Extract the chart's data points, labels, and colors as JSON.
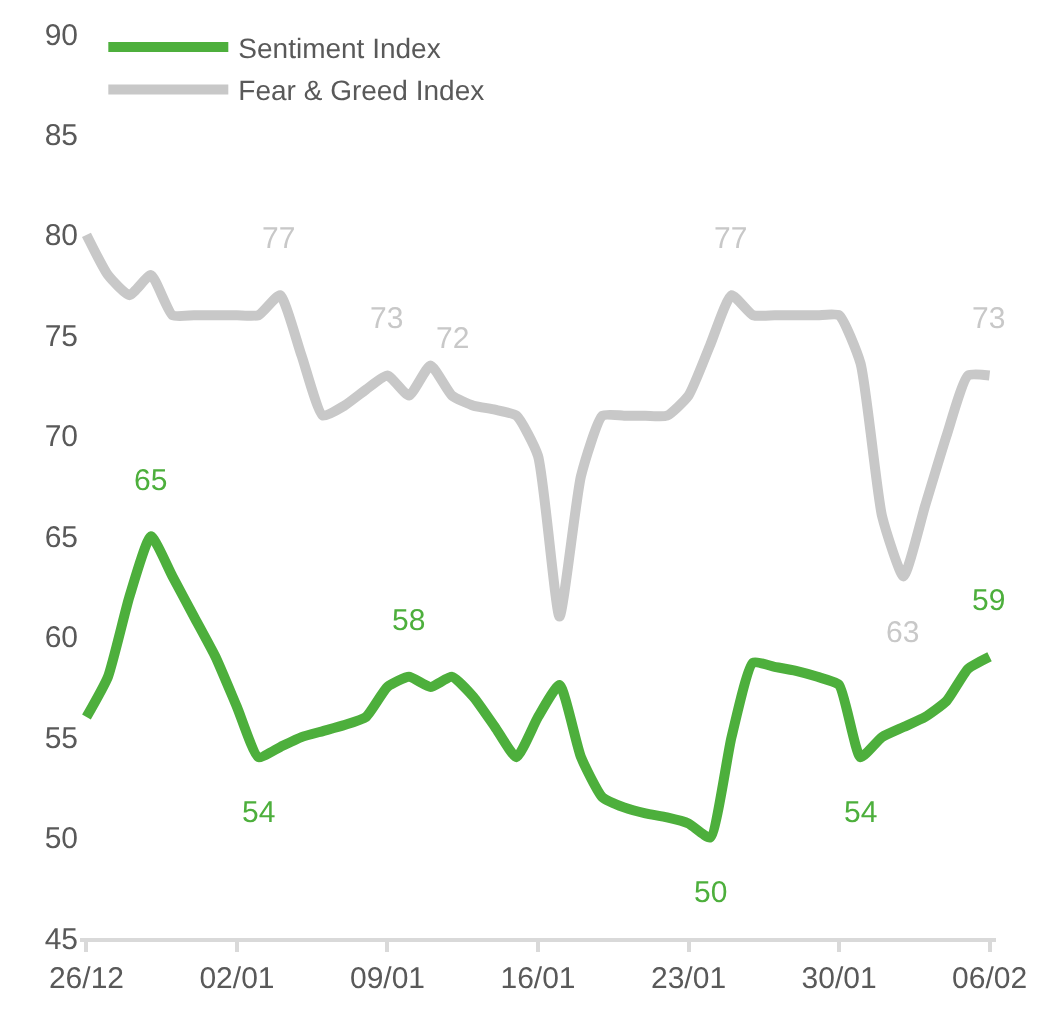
{
  "chart_data": {
    "type": "line",
    "ylim": [
      45,
      90
    ],
    "yticks": [
      45,
      50,
      55,
      60,
      65,
      70,
      75,
      80,
      85,
      90
    ],
    "categories": [
      "26/12",
      null,
      null,
      null,
      null,
      null,
      null,
      "02/01",
      null,
      null,
      null,
      null,
      null,
      null,
      "09/01",
      null,
      null,
      null,
      null,
      null,
      null,
      "16/01",
      null,
      null,
      null,
      null,
      null,
      null,
      "23/01",
      null,
      null,
      null,
      null,
      null,
      null,
      "30/01",
      null,
      null,
      null,
      null,
      null,
      null,
      "06/02"
    ],
    "grid": false,
    "legend": "top left",
    "marker": "none",
    "line_style": "solid",
    "series": [
      {
        "name": "Sentiment Index",
        "color": "#4daf3c",
        "values": [
          56,
          58,
          62,
          65,
          63,
          61,
          59,
          56.5,
          54,
          54.5,
          55,
          55.3,
          55.6,
          56,
          57.5,
          58,
          57.5,
          58,
          57,
          55.5,
          54,
          56,
          57.6,
          54,
          52,
          51.5,
          51.2,
          51,
          50.7,
          50,
          55,
          58.7,
          58.5,
          58.3,
          58,
          57.6,
          54,
          55,
          55.5,
          56,
          56.8,
          58.4,
          59
        ],
        "value_labels": [
          null,
          null,
          null,
          "65",
          null,
          null,
          null,
          null,
          "54",
          null,
          null,
          null,
          null,
          null,
          null,
          "58",
          null,
          null,
          null,
          null,
          null,
          null,
          null,
          null,
          null,
          null,
          null,
          null,
          null,
          "50",
          null,
          null,
          null,
          null,
          null,
          null,
          "54",
          null,
          null,
          null,
          null,
          null,
          "59"
        ]
      },
      {
        "name": "Fear & Greed Index",
        "color": "#c8c8c8",
        "values": [
          80,
          78,
          77,
          78,
          76,
          76,
          76,
          76,
          76,
          77,
          74,
          71,
          71.5,
          72.3,
          73,
          72,
          73.5,
          72,
          71.5,
          71.3,
          71,
          69,
          61,
          68,
          71,
          71,
          71,
          71,
          72,
          74.5,
          77,
          76,
          76,
          76,
          76,
          76,
          73.6,
          66,
          63,
          66.5,
          70,
          73,
          73
        ],
        "value_labels": [
          null,
          null,
          null,
          null,
          null,
          null,
          null,
          null,
          null,
          "77",
          null,
          null,
          null,
          null,
          "73",
          null,
          null,
          "72",
          null,
          null,
          null,
          null,
          null,
          null,
          null,
          null,
          null,
          null,
          null,
          null,
          "77",
          null,
          null,
          null,
          null,
          null,
          null,
          null,
          "63",
          null,
          null,
          null,
          "73"
        ]
      }
    ]
  }
}
